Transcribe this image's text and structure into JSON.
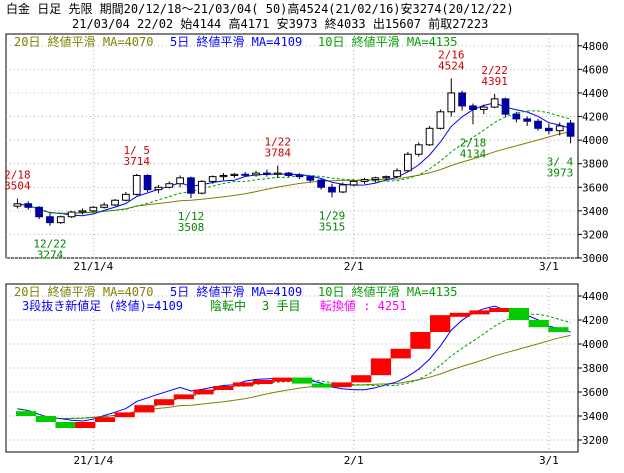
{
  "header": {
    "line1": "白金 日足 先限 期間20/12/18～21/03/04( 50)高4524(21/02/16)安3274(20/12/22)",
    "line2": "21/03/04 22/02 始4144 高4171 安3973 終4033 出15607 前取27223"
  },
  "colors": {
    "up": "#ff0000",
    "down": "#0000a0",
    "ma20": "#808000",
    "ma5": "#0000ff",
    "ma10": "#00a000",
    "grid": "#b0b0b0",
    "magenta": "#ff00ff",
    "label_red": "#d00000",
    "label_green": "#008800"
  },
  "top_panel": {
    "legend": [
      {
        "text": "20日 終値平滑 MA=4070",
        "color": "#808000"
      },
      {
        "text": "5日 終値平滑 MA=4109",
        "color": "#0000ff"
      },
      {
        "text": "10日 終値平滑 MA=4135",
        "color": "#00a000"
      }
    ],
    "y_ticks": [
      "4800",
      "4600",
      "4400",
      "4200",
      "4000",
      "3800",
      "3600",
      "3400",
      "3200",
      "3000"
    ],
    "x_ticks": [
      "21/1/4",
      "2/1",
      "3/1"
    ],
    "annotations": [
      {
        "line1": "2/18",
        "line2": "3504",
        "color": "#d00000",
        "anchor": 0,
        "value": 3504
      },
      {
        "line1": "12/22",
        "line2": "3274",
        "color": "#008800",
        "anchor": 3,
        "value": 3274
      },
      {
        "line1": "1/ 5",
        "line2": "3714",
        "color": "#d00000",
        "anchor": 11,
        "value": 3714
      },
      {
        "line1": "1/12",
        "line2": "3508",
        "color": "#008800",
        "anchor": 16,
        "value": 3508
      },
      {
        "line1": "1/22",
        "line2": "3784",
        "color": "#d00000",
        "anchor": 24,
        "value": 3784
      },
      {
        "line1": "1/29",
        "line2": "3515",
        "color": "#008800",
        "anchor": 29,
        "value": 3515
      },
      {
        "line1": "2/16",
        "line2": "4524",
        "color": "#d00000",
        "anchor": 40,
        "value": 4524
      },
      {
        "line1": "2/22",
        "line2": "4391",
        "color": "#d00000",
        "anchor": 44,
        "value": 4391
      },
      {
        "line1": "2/18",
        "line2": "4134",
        "color": "#008800",
        "anchor": 42,
        "value": 4134
      },
      {
        "line1": "3/ 4",
        "line2": "3973",
        "color": "#008800",
        "anchor": 51,
        "value": 3973
      }
    ]
  },
  "bottom_panel": {
    "legend": [
      {
        "text": "20日 終値平滑 MA=4070",
        "color": "#808000"
      },
      {
        "text": "5日 終値平滑 MA=4109",
        "color": "#0000ff"
      },
      {
        "text": "10日 終値平滑 MA=4135",
        "color": "#00a000"
      }
    ],
    "info": [
      {
        "text": "3段抜き新値足 (終値)=4109",
        "color": "#0000ff"
      },
      {
        "text": "陰転中",
        "color": "#008800"
      },
      {
        "text": "3 手目",
        "color": "#008800"
      },
      {
        "text": "転換値 : 4251",
        "color": "#ff00ff"
      }
    ],
    "y_ticks": [
      "4400",
      "4200",
      "4000",
      "3800",
      "3600",
      "3400",
      "3200"
    ],
    "x_ticks": [
      "21/1/4",
      "2/1",
      "3/1"
    ]
  },
  "chart_data": [
    {
      "type": "candlestick",
      "title": "白金 日足 先限",
      "ylim": [
        3000,
        4900
      ],
      "x_tick_labels": [
        "21/1/4",
        "2/1",
        "3/1"
      ],
      "x_tick_index": [
        7,
        31,
        49
      ],
      "ohlc": [
        [
          3440,
          3504,
          3420,
          3460
        ],
        [
          3460,
          3480,
          3410,
          3430
        ],
        [
          3430,
          3440,
          3330,
          3350
        ],
        [
          3350,
          3380,
          3274,
          3300
        ],
        [
          3300,
          3360,
          3290,
          3350
        ],
        [
          3350,
          3400,
          3340,
          3390
        ],
        [
          3390,
          3420,
          3370,
          3400
        ],
        [
          3400,
          3440,
          3390,
          3430
        ],
        [
          3430,
          3470,
          3420,
          3450
        ],
        [
          3450,
          3500,
          3440,
          3490
        ],
        [
          3490,
          3560,
          3480,
          3540
        ],
        [
          3540,
          3714,
          3530,
          3700
        ],
        [
          3700,
          3710,
          3560,
          3580
        ],
        [
          3580,
          3620,
          3550,
          3600
        ],
        [
          3600,
          3650,
          3590,
          3630
        ],
        [
          3630,
          3700,
          3600,
          3680
        ],
        [
          3680,
          3690,
          3508,
          3550
        ],
        [
          3550,
          3660,
          3540,
          3650
        ],
        [
          3650,
          3700,
          3630,
          3690
        ],
        [
          3690,
          3720,
          3660,
          3700
        ],
        [
          3700,
          3720,
          3680,
          3710
        ],
        [
          3710,
          3730,
          3690,
          3705
        ],
        [
          3705,
          3740,
          3690,
          3720
        ],
        [
          3720,
          3750,
          3690,
          3710
        ],
        [
          3710,
          3784,
          3680,
          3720
        ],
        [
          3720,
          3730,
          3690,
          3700
        ],
        [
          3700,
          3720,
          3670,
          3690
        ],
        [
          3690,
          3700,
          3640,
          3660
        ],
        [
          3660,
          3670,
          3580,
          3600
        ],
        [
          3600,
          3630,
          3515,
          3560
        ],
        [
          3560,
          3640,
          3550,
          3620
        ],
        [
          3620,
          3660,
          3610,
          3650
        ],
        [
          3650,
          3680,
          3630,
          3665
        ],
        [
          3665,
          3690,
          3640,
          3680
        ],
        [
          3680,
          3700,
          3660,
          3690
        ],
        [
          3690,
          3760,
          3680,
          3740
        ],
        [
          3740,
          3900,
          3730,
          3880
        ],
        [
          3880,
          3980,
          3860,
          3960
        ],
        [
          3960,
          4120,
          3950,
          4100
        ],
        [
          4100,
          4260,
          4090,
          4240
        ],
        [
          4240,
          4524,
          4200,
          4400
        ],
        [
          4400,
          4420,
          4250,
          4290
        ],
        [
          4290,
          4310,
          4134,
          4260
        ],
        [
          4260,
          4300,
          4220,
          4280
        ],
        [
          4280,
          4391,
          4270,
          4350
        ],
        [
          4350,
          4360,
          4200,
          4220
        ],
        [
          4220,
          4240,
          4150,
          4180
        ],
        [
          4180,
          4200,
          4120,
          4160
        ],
        [
          4160,
          4180,
          4080,
          4100
        ],
        [
          4100,
          4140,
          4050,
          4080
        ],
        [
          4080,
          4150,
          4040,
          4120
        ],
        [
          4144,
          4171,
          3973,
          4033
        ]
      ],
      "ma": [
        {
          "name": "20日 終値平滑 MA=4070",
          "period": 20
        },
        {
          "name": "5日 終値平滑 MA=4109",
          "period": 5
        },
        {
          "name": "10日 終値平滑 MA=4135",
          "period": 10
        }
      ]
    },
    {
      "type": "bar",
      "title": "3段抜き新値足 (終値)=4109",
      "ylim": [
        3100,
        4500
      ],
      "x_tick_labels": [
        "21/1/4",
        "2/1",
        "3/1"
      ],
      "x_tick_index": [
        7,
        31,
        49
      ],
      "bricks": [
        {
          "from": 3440,
          "to": 3400,
          "dir": "down"
        },
        {
          "from": 3400,
          "to": 3350,
          "dir": "down"
        },
        {
          "from": 3350,
          "to": 3300,
          "dir": "down"
        },
        {
          "from": 3300,
          "to": 3350,
          "dir": "up"
        },
        {
          "from": 3350,
          "to": 3390,
          "dir": "up"
        },
        {
          "from": 3390,
          "to": 3430,
          "dir": "up"
        },
        {
          "from": 3430,
          "to": 3490,
          "dir": "up"
        },
        {
          "from": 3490,
          "to": 3540,
          "dir": "up"
        },
        {
          "from": 3540,
          "to": 3580,
          "dir": "up"
        },
        {
          "from": 3580,
          "to": 3620,
          "dir": "up"
        },
        {
          "from": 3620,
          "to": 3650,
          "dir": "up"
        },
        {
          "from": 3650,
          "to": 3680,
          "dir": "up"
        },
        {
          "from": 3680,
          "to": 3700,
          "dir": "up"
        },
        {
          "from": 3700,
          "to": 3720,
          "dir": "up"
        },
        {
          "from": 3720,
          "to": 3670,
          "dir": "down"
        },
        {
          "from": 3670,
          "to": 3640,
          "dir": "down"
        },
        {
          "from": 3640,
          "to": 3680,
          "dir": "up"
        },
        {
          "from": 3680,
          "to": 3740,
          "dir": "up"
        },
        {
          "from": 3740,
          "to": 3880,
          "dir": "up"
        },
        {
          "from": 3880,
          "to": 3960,
          "dir": "up"
        },
        {
          "from": 3960,
          "to": 4100,
          "dir": "up"
        },
        {
          "from": 4100,
          "to": 4240,
          "dir": "up"
        },
        {
          "from": 4240,
          "to": 4260,
          "dir": "up"
        },
        {
          "from": 4260,
          "to": 4280,
          "dir": "up"
        },
        {
          "from": 4280,
          "to": 4300,
          "dir": "up"
        },
        {
          "from": 4300,
          "to": 4200,
          "dir": "down"
        },
        {
          "from": 4200,
          "to": 4140,
          "dir": "down"
        },
        {
          "from": 4140,
          "to": 4100,
          "dir": "down"
        }
      ],
      "series": [
        {
          "name": "20日 終値平滑 MA=4070"
        },
        {
          "name": "5日 終値平滑 MA=4109"
        },
        {
          "name": "10日 終値平滑 MA=4135"
        }
      ]
    }
  ]
}
